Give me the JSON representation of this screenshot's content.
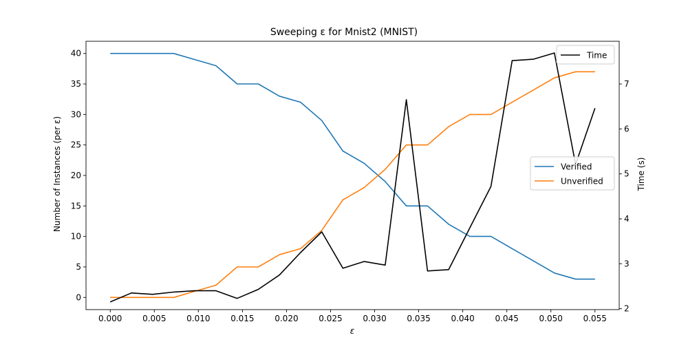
{
  "chart_data": {
    "type": "line",
    "title": "Sweeping ε for Mnist2 (MNIST)",
    "xlabel": "ε",
    "ylabel_left": "Number of Instances (per ε)",
    "ylabel_right": "Time (s)",
    "xlim": [
      -0.00275,
      0.05775
    ],
    "ylim_left": [
      -2,
      42
    ],
    "ylim_right": [
      1.98,
      7.95
    ],
    "x_ticks": [
      0.0,
      0.005,
      0.01,
      0.015,
      0.02,
      0.025,
      0.03,
      0.035,
      0.04,
      0.045,
      0.05,
      0.055
    ],
    "x_tick_labels": [
      "0.000",
      "0.005",
      "0.010",
      "0.015",
      "0.020",
      "0.025",
      "0.030",
      "0.035",
      "0.040",
      "0.045",
      "0.050",
      "0.055"
    ],
    "y_left_ticks": [
      0,
      5,
      10,
      15,
      20,
      25,
      30,
      35,
      40
    ],
    "y_left_tick_labels": [
      "0",
      "5",
      "10",
      "15",
      "20",
      "25",
      "30",
      "35",
      "40"
    ],
    "y_right_ticks": [
      2,
      3,
      4,
      5,
      6,
      7
    ],
    "y_right_tick_labels": [
      "2",
      "3",
      "4",
      "5",
      "6",
      "7"
    ],
    "x": [
      0.0,
      0.0024,
      0.0048,
      0.0072,
      0.0096,
      0.012,
      0.0144,
      0.0168,
      0.0192,
      0.0216,
      0.024,
      0.0264,
      0.0288,
      0.0312,
      0.0336,
      0.036,
      0.0384,
      0.0408,
      0.0432,
      0.0456,
      0.048,
      0.0504,
      0.0528,
      0.055
    ],
    "series": [
      {
        "name": "Verified",
        "axis": "left",
        "color": "#1f77b4",
        "values": [
          40,
          40,
          40,
          40,
          39,
          38,
          35,
          35,
          33,
          32,
          29,
          24,
          22,
          19,
          15,
          15,
          12,
          10,
          10,
          8,
          6,
          4,
          3,
          3
        ]
      },
      {
        "name": "Unverified",
        "axis": "left",
        "color": "#ff7f0e",
        "values": [
          0,
          0,
          0,
          0,
          1,
          2,
          5,
          5,
          7,
          8,
          11,
          16,
          18,
          21,
          25,
          25,
          28,
          30,
          30,
          32,
          34,
          36,
          37,
          37
        ]
      },
      {
        "name": "Time",
        "axis": "right",
        "color": "#000000",
        "values": [
          2.15,
          2.35,
          2.32,
          2.37,
          2.4,
          2.4,
          2.23,
          2.43,
          2.75,
          3.25,
          3.71,
          2.9,
          3.05,
          2.97,
          6.65,
          2.84,
          2.87,
          3.8,
          4.72,
          7.52,
          7.55,
          7.69,
          5.21,
          6.46
        ]
      }
    ],
    "legends": [
      {
        "position": "upper-right",
        "entries": [
          "Time"
        ]
      },
      {
        "position": "center-right",
        "entries": [
          "Verified",
          "Unverified"
        ]
      }
    ],
    "grid": false
  }
}
